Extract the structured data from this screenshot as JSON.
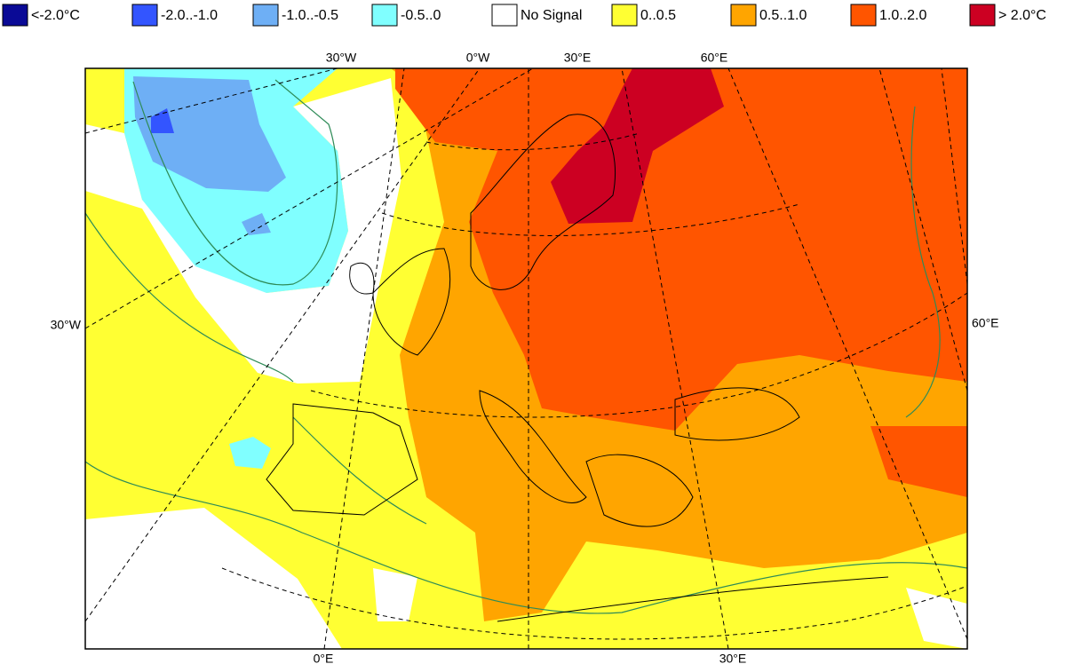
{
  "legend": {
    "items": [
      {
        "label": "<-2.0°C",
        "color": "#0a0a96"
      },
      {
        "label": "-2.0..-1.0",
        "color": "#3355ff"
      },
      {
        "label": "-1.0..-0.5",
        "color": "#6eaff5"
      },
      {
        "label": "-0.5..0",
        "color": "#80ffff"
      },
      {
        "label": "No Signal",
        "color": "#ffffff"
      },
      {
        "label": "0..0.5",
        "color": "#ffff33"
      },
      {
        "label": "0.5..1.0",
        "color": "#ffa500"
      },
      {
        "label": "1.0..2.0",
        "color": "#ff5500"
      },
      {
        "label": "> 2.0°C",
        "color": "#cc0022"
      }
    ]
  },
  "map_labels": {
    "top": [
      "30°W",
      "0°W",
      "30°E",
      "60°E"
    ],
    "left": [
      "30°W"
    ],
    "right": [
      "60°E"
    ],
    "bottom": [
      "0°E",
      "30°E"
    ]
  }
}
